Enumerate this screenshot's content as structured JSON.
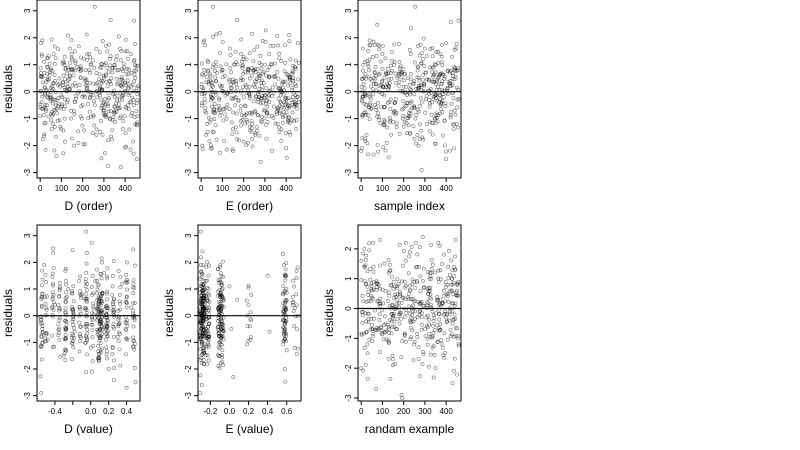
{
  "chart_data": [
    {
      "type": "scatter",
      "xlabel": "D (order)",
      "ylabel": "residuals",
      "xlim": [
        -15,
        470
      ],
      "ylim": [
        -3.2,
        3.4
      ],
      "xticks": [
        0,
        100,
        200,
        300,
        400
      ],
      "yticks": [
        -3,
        -2,
        -1,
        0,
        1,
        2,
        3
      ],
      "reference_line_y": 0,
      "n_points": 460,
      "residual_summary": {
        "mean": 0,
        "sd": 1.0,
        "min": -2.9,
        "max": 3.2
      },
      "points": [
        [
          0,
          -0.9
        ],
        [
          5,
          1.8
        ],
        [
          10,
          1.9
        ],
        [
          20,
          0.7
        ],
        [
          35,
          0.9
        ],
        [
          45,
          -0.2
        ],
        [
          60,
          -1.2
        ],
        [
          70,
          0.4
        ],
        [
          80,
          -0.8
        ],
        [
          95,
          -1.3
        ],
        [
          110,
          0.6
        ],
        [
          115,
          -1.0
        ],
        [
          130,
          -0.3
        ],
        [
          140,
          1.6
        ],
        [
          150,
          1.2
        ],
        [
          160,
          -2.0
        ],
        [
          170,
          0.2
        ],
        [
          180,
          -1.9
        ],
        [
          200,
          -0.5
        ],
        [
          215,
          0.8
        ],
        [
          230,
          1.4
        ],
        [
          250,
          0.3
        ],
        [
          257,
          3.15
        ],
        [
          265,
          -1.6
        ],
        [
          280,
          0.1
        ],
        [
          300,
          -0.4
        ],
        [
          310,
          1.7
        ],
        [
          320,
          -1.8
        ],
        [
          335,
          0.5
        ],
        [
          350,
          1.0
        ],
        [
          365,
          -0.6
        ],
        [
          380,
          -2.8
        ],
        [
          395,
          0.9
        ],
        [
          410,
          1.5
        ],
        [
          420,
          -1.4
        ],
        [
          430,
          0.7
        ],
        [
          440,
          -2.3
        ],
        [
          455,
          -2.5
        ],
        [
          460,
          0.2
        ]
      ]
    },
    {
      "type": "scatter",
      "xlabel": "E (order)",
      "ylabel": "residuals",
      "xlim": [
        -15,
        470
      ],
      "ylim": [
        -3.2,
        3.4
      ],
      "xticks": [
        0,
        100,
        200,
        300,
        400
      ],
      "yticks": [
        -3,
        -2,
        -1,
        0,
        1,
        2,
        3
      ],
      "reference_line_y": 0,
      "n_points": 460,
      "residual_summary": {
        "mean": 0,
        "sd": 1.0,
        "min": -2.9,
        "max": 3.2
      },
      "points": [
        [
          5,
          -2.0
        ],
        [
          15,
          1.9
        ],
        [
          30,
          -1.5
        ],
        [
          55,
          3.15
        ],
        [
          70,
          1.1
        ],
        [
          85,
          -0.3
        ],
        [
          100,
          0.8
        ],
        [
          120,
          -1.0
        ],
        [
          135,
          1.6
        ],
        [
          150,
          -2.2
        ],
        [
          165,
          0.4
        ],
        [
          185,
          -0.7
        ],
        [
          200,
          1.3
        ],
        [
          220,
          -1.9
        ],
        [
          240,
          0.6
        ],
        [
          260,
          -0.2
        ],
        [
          280,
          -2.6
        ],
        [
          300,
          1.0
        ],
        [
          320,
          -0.9
        ],
        [
          340,
          1.7
        ],
        [
          360,
          -1.2
        ],
        [
          380,
          0.3
        ],
        [
          400,
          -2.1
        ],
        [
          420,
          1.2
        ],
        [
          440,
          -0.5
        ],
        [
          455,
          1.8
        ]
      ]
    },
    {
      "type": "scatter",
      "xlabel": "sample index",
      "ylabel": "residuals",
      "xlim": [
        -15,
        470
      ],
      "ylim": [
        -3.2,
        3.4
      ],
      "xticks": [
        0,
        100,
        200,
        300,
        400
      ],
      "yticks": [
        -3,
        -2,
        -1,
        0,
        1,
        2,
        3
      ],
      "reference_line_y": 0,
      "n_points": 460,
      "residual_summary": {
        "mean": 0,
        "sd": 1.0,
        "min": -2.9,
        "max": 3.2
      },
      "points": [
        [
          0,
          -2.2
        ],
        [
          10,
          1.0
        ],
        [
          25,
          -1.6
        ],
        [
          40,
          1.9
        ],
        [
          60,
          0.3
        ],
        [
          80,
          -0.8
        ],
        [
          100,
          1.4
        ],
        [
          120,
          -1.9
        ],
        [
          140,
          0.7
        ],
        [
          160,
          -0.4
        ],
        [
          180,
          1.1
        ],
        [
          200,
          -1.3
        ],
        [
          220,
          0.5
        ],
        [
          240,
          -0.6
        ],
        [
          255,
          3.15
        ],
        [
          270,
          -2.0
        ],
        [
          285,
          -2.9
        ],
        [
          300,
          1.6
        ],
        [
          320,
          -0.3
        ],
        [
          340,
          0.9
        ],
        [
          360,
          -1.1
        ],
        [
          380,
          1.3
        ],
        [
          400,
          -2.5
        ],
        [
          420,
          0.4
        ],
        [
          440,
          -0.7
        ],
        [
          455,
          0.8
        ]
      ]
    },
    {
      "type": "scatter",
      "xlabel": "D (value)",
      "ylabel": "residuals",
      "xlim": [
        -0.6,
        0.55
      ],
      "ylim": [
        -3.2,
        3.4
      ],
      "xticks": [
        -0.4,
        -0.2,
        0.0,
        0.2,
        0.4
      ],
      "xtick_labels_shown": [
        "-0.4",
        "0.0",
        "0.2",
        "0.4"
      ],
      "yticks": [
        -3,
        -2,
        -1,
        0,
        1,
        2,
        3
      ],
      "reference_line_y": 0,
      "n_points": 460,
      "residual_summary": {
        "mean": 0,
        "sd": 1.0,
        "min": -2.9,
        "max": 3.2
      },
      "points": [
        [
          -0.55,
          0.7
        ],
        [
          -0.52,
          1.9
        ],
        [
          -0.48,
          -0.9
        ],
        [
          -0.4,
          0.4
        ],
        [
          -0.3,
          -1.5
        ],
        [
          -0.25,
          1.0
        ],
        [
          -0.18,
          -0.6
        ],
        [
          -0.1,
          0.8
        ],
        [
          -0.05,
          3.15
        ],
        [
          0.0,
          -1.2
        ],
        [
          0.05,
          1.3
        ],
        [
          0.1,
          -0.3
        ],
        [
          0.15,
          1.6
        ],
        [
          0.2,
          -2.0
        ],
        [
          0.25,
          0.5
        ],
        [
          0.3,
          -0.8
        ],
        [
          0.35,
          1.2
        ],
        [
          0.4,
          -2.7
        ],
        [
          0.45,
          0.3
        ],
        [
          0.5,
          -2.5
        ]
      ]
    },
    {
      "type": "scatter",
      "xlabel": "E (value)",
      "ylabel": "residuals",
      "xlim": [
        -0.33,
        0.75
      ],
      "ylim": [
        -3.2,
        3.4
      ],
      "xticks": [
        -0.2,
        0.0,
        0.2,
        0.4,
        0.6
      ],
      "yticks": [
        -3,
        -2,
        -1,
        0,
        1,
        2,
        3
      ],
      "reference_line_y": 0,
      "n_points": 460,
      "residual_summary": {
        "mean": 0,
        "sd": 1.0,
        "min": -2.9,
        "max": 3.2
      },
      "points": [
        [
          -0.3,
          3.15
        ],
        [
          -0.3,
          1.9
        ],
        [
          -0.29,
          -2.6
        ],
        [
          -0.28,
          0.5
        ],
        [
          -0.27,
          -1.4
        ],
        [
          -0.25,
          1.3
        ],
        [
          -0.22,
          -0.7
        ],
        [
          -0.12,
          0.9
        ],
        [
          -0.1,
          -1.0
        ],
        [
          -0.08,
          0.3
        ],
        [
          0.0,
          1.1
        ],
        [
          0.02,
          -0.5
        ],
        [
          0.04,
          -2.3
        ],
        [
          0.08,
          0.6
        ],
        [
          0.2,
          0.4
        ],
        [
          0.22,
          -0.9
        ],
        [
          0.4,
          1.5
        ],
        [
          0.42,
          -0.6
        ],
        [
          0.57,
          1.9
        ],
        [
          0.58,
          -2.0
        ],
        [
          0.59,
          0.2
        ],
        [
          0.6,
          -1.3
        ],
        [
          0.68,
          -0.4
        ],
        [
          0.7,
          0.8
        ]
      ]
    },
    {
      "type": "scatter",
      "xlabel": "randam example",
      "ylabel": "residuals",
      "xlim": [
        -15,
        470
      ],
      "ylim": [
        -3.1,
        2.8
      ],
      "xticks": [
        0,
        100,
        200,
        300,
        400
      ],
      "yticks": [
        -3,
        -2,
        -1,
        0,
        1,
        2
      ],
      "reference_line_y": 0,
      "n_points": 460,
      "residual_summary": {
        "mean": 0,
        "sd": 1.0,
        "min": -3.0,
        "max": 2.5
      },
      "points": [
        [
          0,
          -2.0
        ],
        [
          15,
          2.0
        ],
        [
          30,
          -1.5
        ],
        [
          50,
          0.6
        ],
        [
          70,
          -2.7
        ],
        [
          90,
          2.3
        ],
        [
          110,
          -0.8
        ],
        [
          130,
          1.2
        ],
        [
          150,
          -1.9
        ],
        [
          170,
          0.3
        ],
        [
          190,
          -2.9
        ],
        [
          210,
          1.6
        ],
        [
          230,
          -0.4
        ],
        [
          250,
          0.9
        ],
        [
          270,
          -1.3
        ],
        [
          290,
          2.4
        ],
        [
          310,
          -0.6
        ],
        [
          330,
          1.0
        ],
        [
          350,
          -2.0
        ],
        [
          370,
          2.1
        ],
        [
          390,
          -0.2
        ],
        [
          410,
          1.4
        ],
        [
          430,
          -2.5
        ],
        [
          445,
          2.3
        ],
        [
          455,
          -1.0
        ]
      ]
    }
  ]
}
